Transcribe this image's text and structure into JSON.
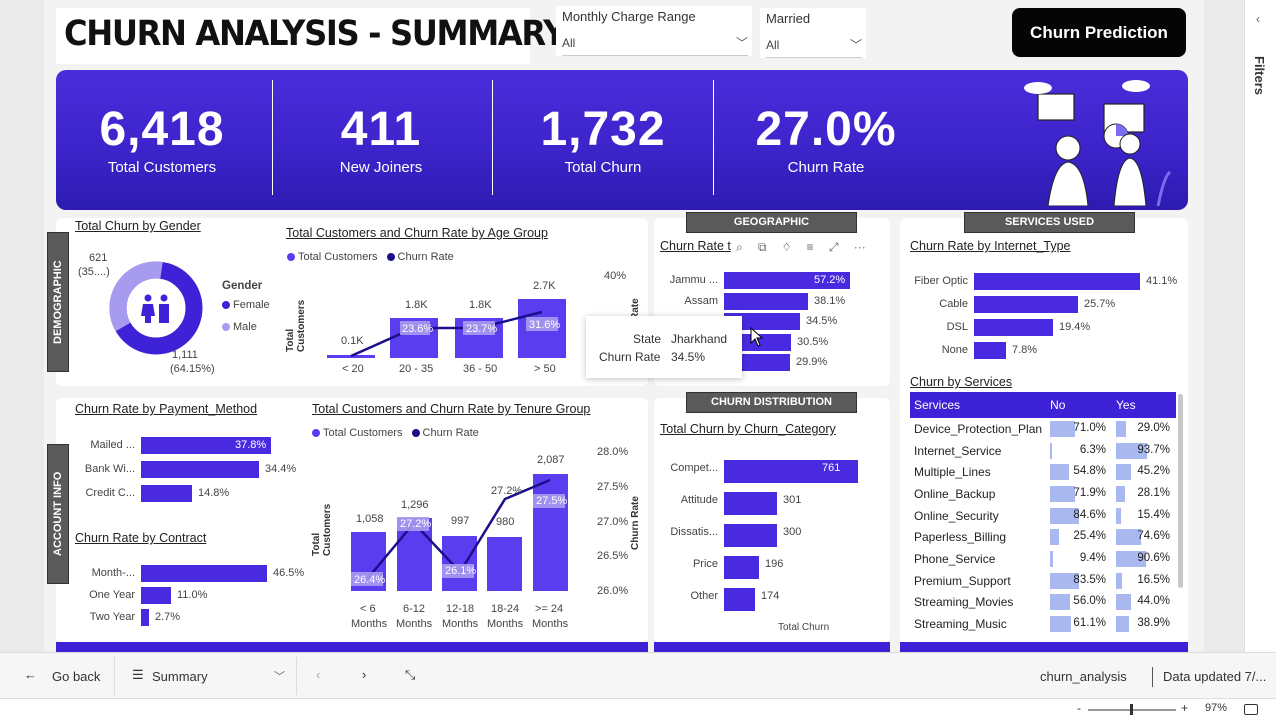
{
  "title": "CHURN ANALYSIS - SUMMARY",
  "slicers": [
    {
      "label": "Monthly Charge Range",
      "value": "All"
    },
    {
      "label": "Married",
      "value": "All"
    }
  ],
  "prediction_button": "Churn Prediction",
  "kpis": [
    {
      "value": "6,418",
      "label": "Total Customers"
    },
    {
      "value": "411",
      "label": "New Joiners"
    },
    {
      "value": "1,732",
      "label": "Total Churn"
    },
    {
      "value": "27.0%",
      "label": "Churn Rate"
    }
  ],
  "section_tags": {
    "demographic": "DEMOGRAPHIC",
    "account_info": "ACCOUNT INFO",
    "geographic": "GEOGRAPHIC",
    "services_used": "SERVICES USED",
    "churn_distribution": "CHURN DISTRIBUTION"
  },
  "gender_chart": {
    "title": "Total Churn by Gender",
    "legend_title": "Gender",
    "legend": [
      "Female",
      "Male"
    ],
    "colors": [
      "#3d22d8",
      "#a79bf0"
    ],
    "labels": [
      "621",
      "(35....)",
      "1,111",
      "(64.15%)"
    ]
  },
  "age_chart": {
    "title": "Total Customers and Churn Rate by Age Group",
    "legend": [
      "Total Customers",
      "Churn Rate"
    ],
    "ylabel": "Total Customers",
    "y2label": "Rate",
    "y2ticks": [
      "40%",
      "30%"
    ],
    "categories": [
      "< 20",
      "20 - 35",
      "36 - 50",
      "> 50"
    ],
    "bar_labels": [
      "0.1K",
      "1.8K",
      "1.8K",
      "2.7K"
    ],
    "rate_labels": [
      "",
      "23.6%",
      "23.7%",
      "31.6%"
    ]
  },
  "state_chart": {
    "title": "Churn Rate t",
    "rows": [
      {
        "cat": "Jammu ...",
        "val": "57.2%"
      },
      {
        "cat": "Assam",
        "val": "38.1%"
      },
      {
        "cat": "",
        "val": "34.5%"
      },
      {
        "cat": "",
        "val": "30.5%"
      },
      {
        "cat": "",
        "val": "29.9%"
      }
    ]
  },
  "tooltip": {
    "k1": "State",
    "v1": "Jharkhand",
    "k2": "Churn Rate",
    "v2": "34.5%"
  },
  "internet_chart": {
    "title": "Churn Rate by Internet_Type",
    "rows": [
      {
        "cat": "Fiber Optic",
        "val": "41.1%"
      },
      {
        "cat": "Cable",
        "val": "25.7%"
      },
      {
        "cat": "DSL",
        "val": "19.4%"
      },
      {
        "cat": "None",
        "val": "7.8%"
      }
    ]
  },
  "payment_chart": {
    "title": "Churn Rate by Payment_Method",
    "rows": [
      {
        "cat": "Mailed ...",
        "val": "37.8%"
      },
      {
        "cat": "Bank Wi...",
        "val": "34.4%"
      },
      {
        "cat": "Credit C...",
        "val": "14.8%"
      }
    ]
  },
  "contract_chart": {
    "title": "Churn Rate by Contract",
    "rows": [
      {
        "cat": "Month-...",
        "val": "46.5%"
      },
      {
        "cat": "One Year",
        "val": "11.0%"
      },
      {
        "cat": "Two Year",
        "val": "2.7%"
      }
    ]
  },
  "tenure_chart": {
    "title": "Total Customers and Churn Rate by Tenure Group",
    "legend": [
      "Total Customers",
      "Churn Rate"
    ],
    "ylabel": "Total Customers",
    "y2label": "Churn Rate",
    "y2ticks": [
      "28.0%",
      "27.5%",
      "27.0%",
      "26.5%",
      "26.0%"
    ],
    "categories": [
      [
        "< 6",
        "Months"
      ],
      [
        "6-12",
        "Months"
      ],
      [
        "12-18",
        "Months"
      ],
      [
        "18-24",
        "Months"
      ],
      [
        ">= 24",
        "Months"
      ]
    ],
    "bar_labels": [
      "1,058",
      "1,296",
      "997",
      "980",
      "2,087"
    ],
    "rate_labels": [
      "26.4%",
      "27.2%",
      "26.1%",
      "27.2%",
      "27.5%"
    ]
  },
  "churn_category_chart": {
    "title": "Total Churn by Churn_Category",
    "xlabel": "Total Churn",
    "rows": [
      {
        "cat": "Compet...",
        "val": "761"
      },
      {
        "cat": "Attitude",
        "val": "301"
      },
      {
        "cat": "Dissatis...",
        "val": "300"
      },
      {
        "cat": "Price",
        "val": "196"
      },
      {
        "cat": "Other",
        "val": "174"
      }
    ]
  },
  "services_table": {
    "title": "Churn by Services",
    "headers": [
      "Services",
      "No",
      "Yes"
    ],
    "rows": [
      {
        "name": "Device_Protection_Plan",
        "no": "71.0%",
        "yes": "29.0%"
      },
      {
        "name": "Internet_Service",
        "no": "6.3%",
        "yes": "93.7%"
      },
      {
        "name": "Multiple_Lines",
        "no": "54.8%",
        "yes": "45.2%"
      },
      {
        "name": "Online_Backup",
        "no": "71.9%",
        "yes": "28.1%"
      },
      {
        "name": "Online_Security",
        "no": "84.6%",
        "yes": "15.4%"
      },
      {
        "name": "Paperless_Billing",
        "no": "25.4%",
        "yes": "74.6%"
      },
      {
        "name": "Phone_Service",
        "no": "9.4%",
        "yes": "90.6%"
      },
      {
        "name": "Premium_Support",
        "no": "83.5%",
        "yes": "16.5%"
      },
      {
        "name": "Streaming_Movies",
        "no": "56.0%",
        "yes": "44.0%"
      },
      {
        "name": "Streaming_Music",
        "no": "61.1%",
        "yes": "38.9%"
      }
    ]
  },
  "statusbar": {
    "back": "Go back",
    "page": "Summary",
    "report": "churn_analysis",
    "updated": "Data updated 7/...",
    "zoom": "97%"
  },
  "filters_pane": "Filters",
  "accent": "#3d22d8"
}
